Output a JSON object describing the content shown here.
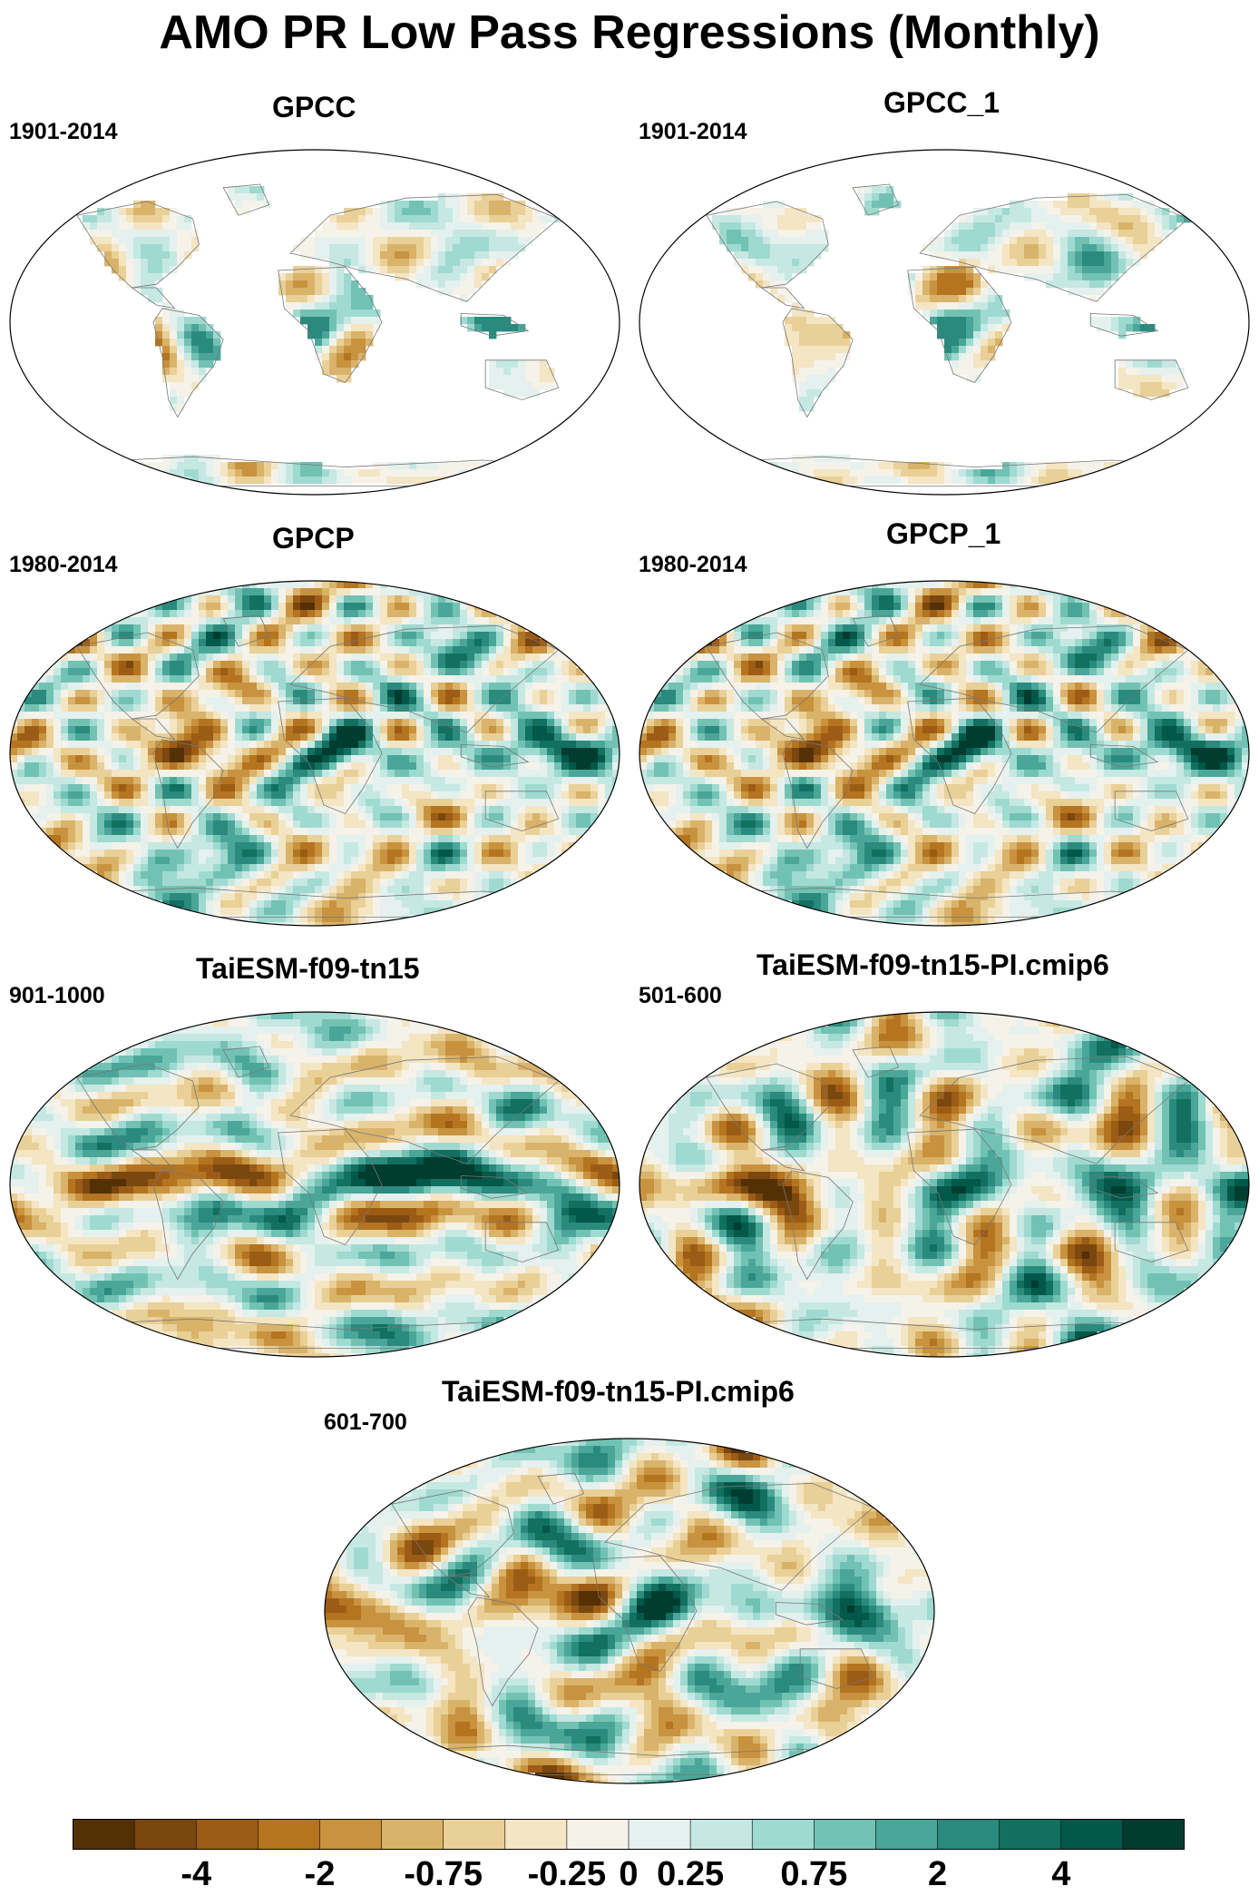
{
  "figure_title": "AMO PR Low Pass Regressions (Monthly)",
  "panels": [
    {
      "id": "gpcc",
      "title": "GPCC",
      "period": "1901-2014",
      "coverage": "land_only",
      "pattern": 1
    },
    {
      "id": "gpcc_1",
      "title": "GPCC_1",
      "period": "1901-2014",
      "coverage": "land_only",
      "pattern": 2
    },
    {
      "id": "gpcp",
      "title": "GPCP",
      "period": "1980-2014",
      "coverage": "global",
      "pattern": 3
    },
    {
      "id": "gpcp_1",
      "title": "GPCP_1",
      "period": "1980-2014",
      "coverage": "global",
      "pattern": 3
    },
    {
      "id": "taiesm",
      "title": "TaiESM-f09-tn15",
      "period": "901-1000",
      "coverage": "global",
      "pattern": 5
    },
    {
      "id": "taiesm_pi_a",
      "title": "TaiESM-f09-tn15-PI.cmip6",
      "period": "501-600",
      "coverage": "global",
      "pattern": 6
    },
    {
      "id": "taiesm_pi_b",
      "title": "TaiESM-f09-tn15-PI.cmip6",
      "period": "601-700",
      "coverage": "global",
      "pattern": 7
    }
  ],
  "colorbar": {
    "colors": [
      "#543005",
      "#7a470f",
      "#9c5c16",
      "#b47420",
      "#c8923f",
      "#d9b36a",
      "#e9d097",
      "#f4e5c3",
      "#f5f2e9",
      "#e4f1ee",
      "#c6e8e2",
      "#9fdad0",
      "#72c2b4",
      "#4aa699",
      "#2a8a7d",
      "#11705f",
      "#025849",
      "#003c30"
    ],
    "tick_labels": [
      "-4",
      "-2",
      "-0.75",
      "-0.25",
      "0",
      "0.25",
      "0.75",
      "2",
      "4"
    ],
    "tick_boundaries": [
      2,
      4,
      6,
      8,
      9,
      10,
      12,
      14,
      16
    ]
  }
}
